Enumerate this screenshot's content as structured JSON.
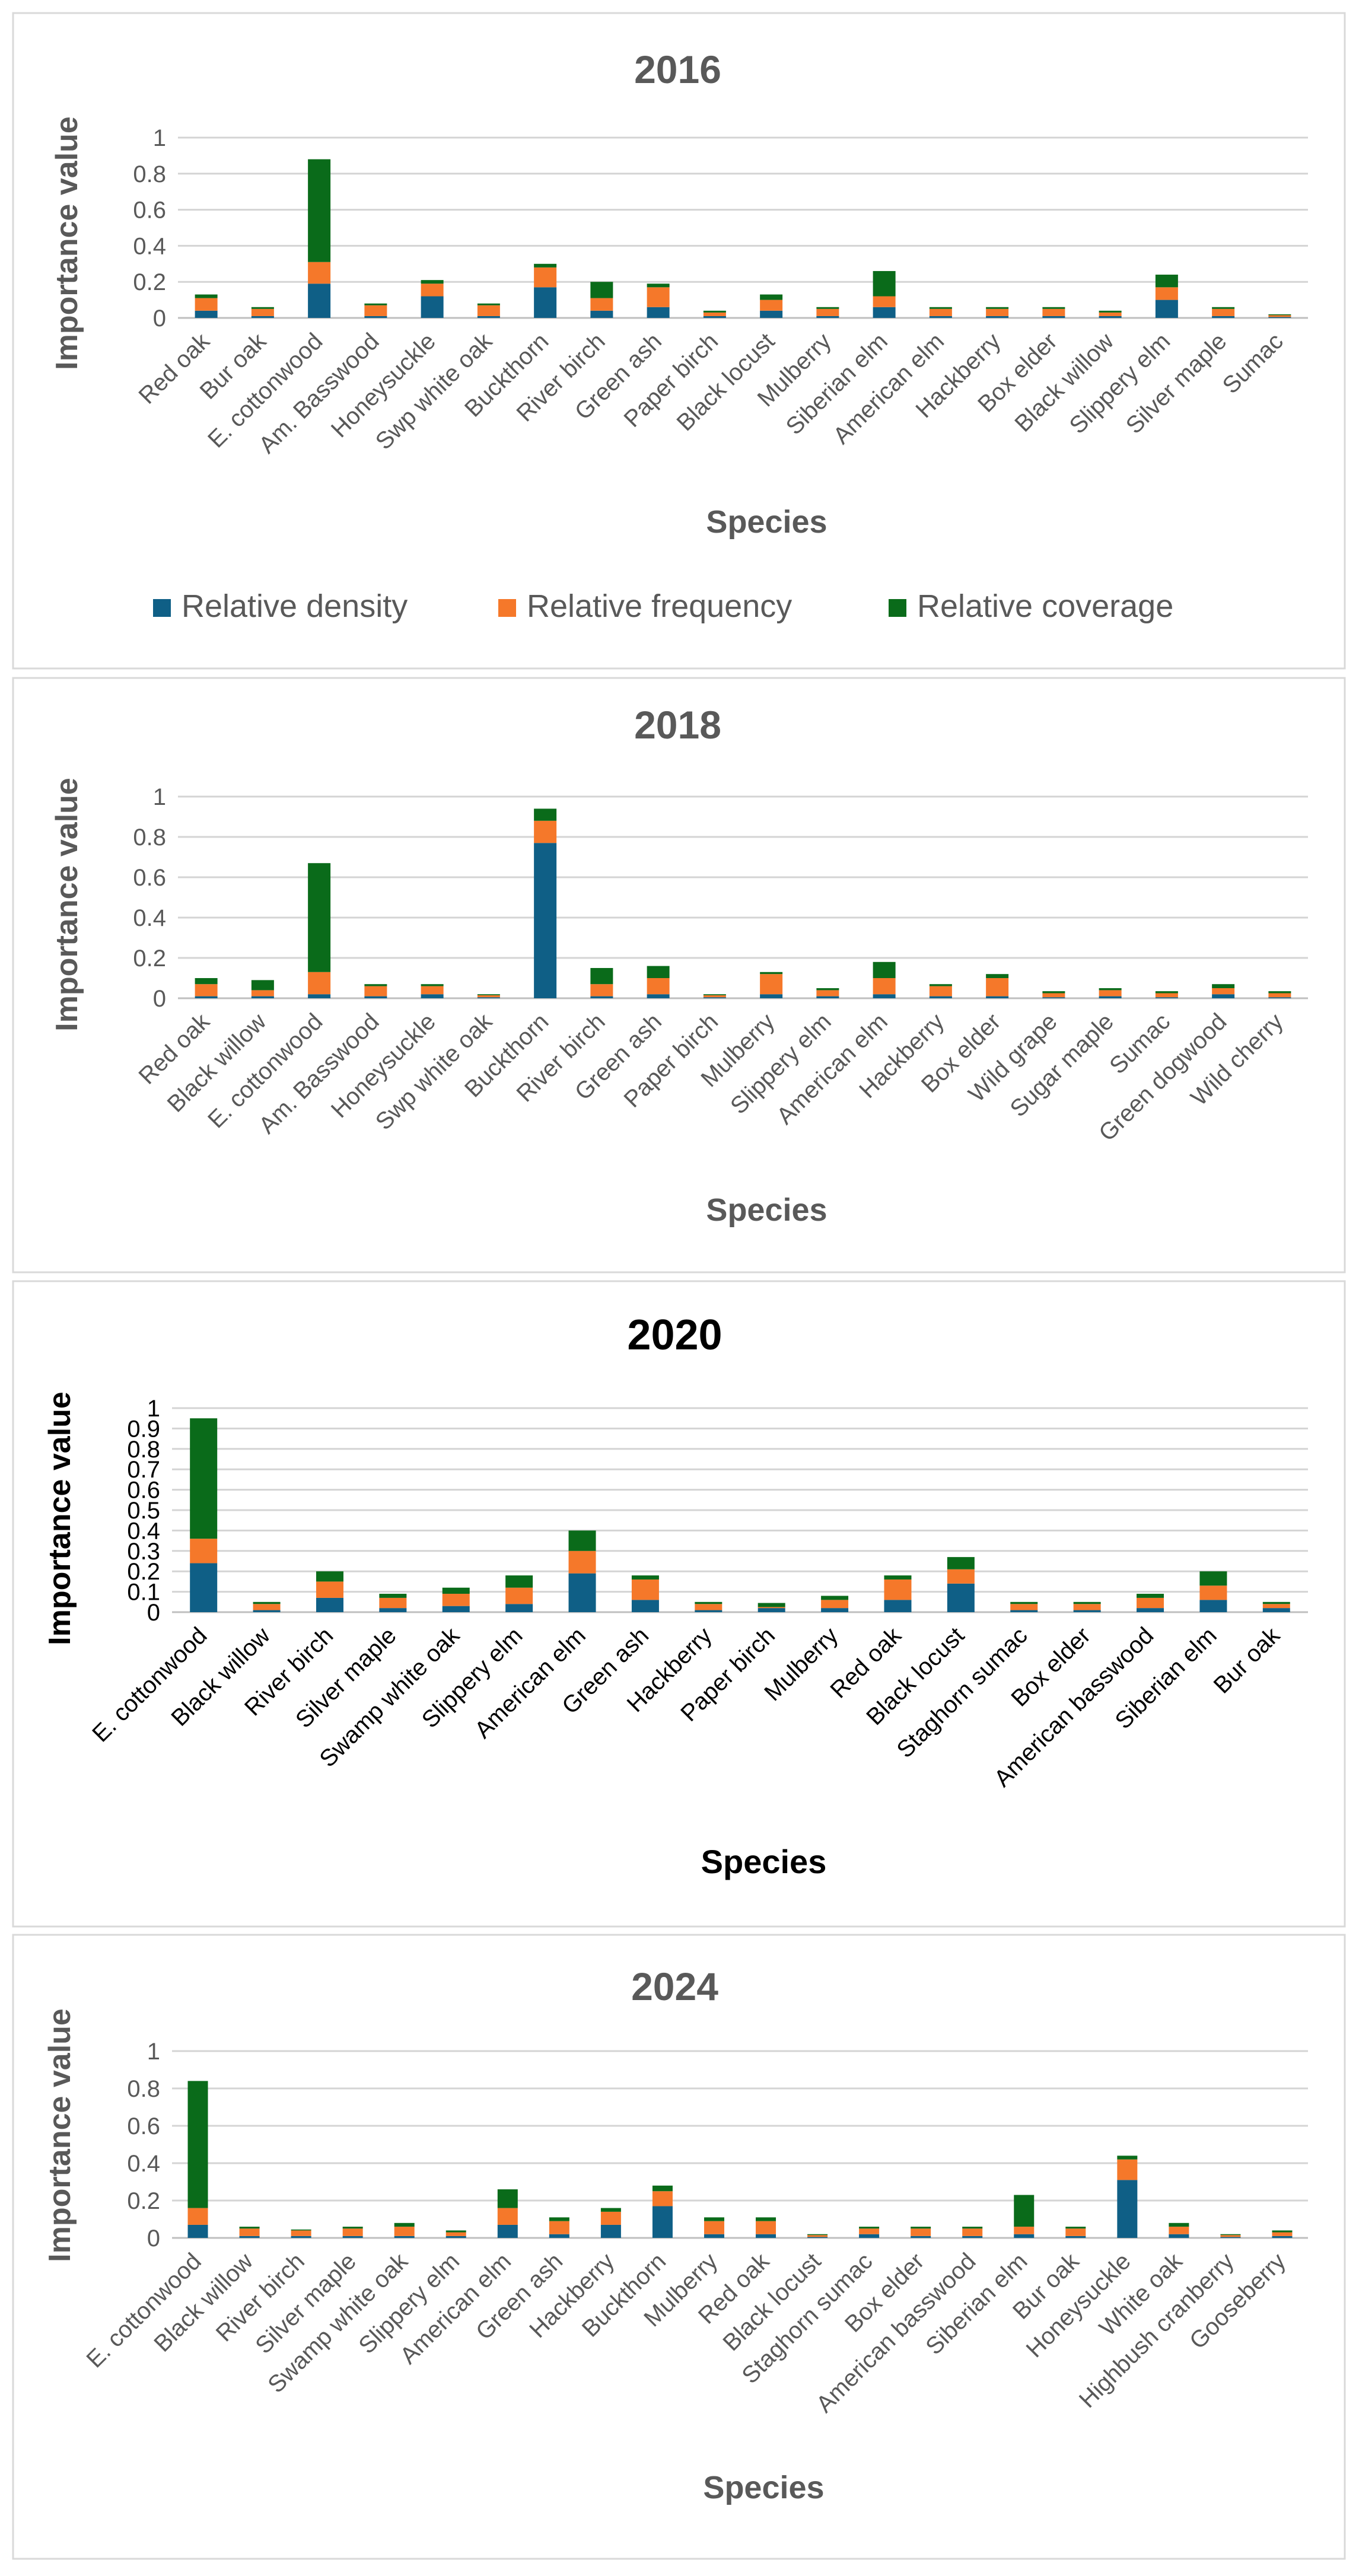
{
  "colors": {
    "density": "#0f5f86",
    "frequency": "#f5782a",
    "coverage": "#0a6b1a",
    "grid": "#d4d4d4",
    "axis_text": "#595959",
    "dark_text": "#000000"
  },
  "legend": {
    "density": "Relative density",
    "frequency": "Relative frequency",
    "coverage": "Relative coverage"
  },
  "chart_data": [
    {
      "type": "bar",
      "stacked": true,
      "title": "2016",
      "xlabel": "Species",
      "ylabel": "Importance value",
      "ylim": [
        0,
        1
      ],
      "yticks": [
        "0",
        "0.2",
        "0.4",
        "0.6",
        "0.8",
        "1"
      ],
      "grid": true,
      "legend_position": "bottom",
      "categories": [
        "Red oak",
        "Bur oak",
        "E. cottonwood",
        "Am. Basswood",
        "Honeysuckle",
        "Swp white oak",
        "Buckthorn",
        "River birch",
        "Green ash",
        "Paper birch",
        "Black locust",
        "Mulberry",
        "Siberian elm",
        "American elm",
        "Hackberry",
        "Box elder",
        "Black willow",
        "Slippery elm",
        "Silver maple",
        "Sumac"
      ],
      "series": [
        {
          "name": "Relative density",
          "values": [
            0.04,
            0.01,
            0.19,
            0.01,
            0.12,
            0.01,
            0.17,
            0.04,
            0.06,
            0.01,
            0.04,
            0.01,
            0.06,
            0.01,
            0.01,
            0.01,
            0.01,
            0.1,
            0.01,
            0.005
          ]
        },
        {
          "name": "Relative frequency",
          "values": [
            0.07,
            0.04,
            0.12,
            0.06,
            0.07,
            0.06,
            0.11,
            0.07,
            0.11,
            0.02,
            0.06,
            0.04,
            0.06,
            0.04,
            0.04,
            0.04,
            0.02,
            0.07,
            0.04,
            0.01
          ]
        },
        {
          "name": "Relative coverage",
          "values": [
            0.02,
            0.01,
            0.57,
            0.01,
            0.02,
            0.01,
            0.02,
            0.09,
            0.02,
            0.01,
            0.03,
            0.01,
            0.14,
            0.01,
            0.01,
            0.01,
            0.01,
            0.07,
            0.01,
            0.005
          ]
        }
      ]
    },
    {
      "type": "bar",
      "stacked": true,
      "title": "2018",
      "xlabel": "Species",
      "ylabel": "Importance value",
      "ylim": [
        0,
        1
      ],
      "yticks": [
        "0",
        "0.2",
        "0.4",
        "0.6",
        "0.8",
        "1"
      ],
      "grid": true,
      "legend_position": "none",
      "categories": [
        "Red oak",
        "Black willow",
        "E. cottonwood",
        "Am. Basswood",
        "Honeysuckle",
        "Swp white oak",
        "Buckthorn",
        "River birch",
        "Green ash",
        "Paper birch",
        "Mulberry",
        "Slippery elm",
        "American elm",
        "Hackberry",
        "Box elder",
        "Wild grape",
        "Sugar maple",
        "Sumac",
        "Green dogwood",
        "Wild cherry"
      ],
      "series": [
        {
          "name": "Relative density",
          "values": [
            0.01,
            0.01,
            0.02,
            0.01,
            0.02,
            0.005,
            0.77,
            0.01,
            0.02,
            0.005,
            0.02,
            0.01,
            0.02,
            0.01,
            0.01,
            0.005,
            0.01,
            0.005,
            0.02,
            0.005
          ]
        },
        {
          "name": "Relative frequency",
          "values": [
            0.06,
            0.03,
            0.11,
            0.05,
            0.04,
            0.01,
            0.11,
            0.06,
            0.08,
            0.01,
            0.1,
            0.03,
            0.08,
            0.05,
            0.09,
            0.02,
            0.03,
            0.02,
            0.03,
            0.02
          ]
        },
        {
          "name": "Relative coverage",
          "values": [
            0.03,
            0.05,
            0.54,
            0.01,
            0.01,
            0.005,
            0.06,
            0.08,
            0.06,
            0.005,
            0.01,
            0.01,
            0.08,
            0.01,
            0.02,
            0.01,
            0.01,
            0.01,
            0.02,
            0.01
          ]
        }
      ]
    },
    {
      "type": "bar",
      "stacked": true,
      "title": "2020",
      "xlabel": "Species",
      "ylabel": "Importance value",
      "ylim": [
        0,
        1
      ],
      "yticks": [
        "0",
        "0.1",
        "0.2",
        "0.3",
        "0.4",
        "0.5",
        "0.6",
        "0.7",
        "0.8",
        "0.9",
        "1"
      ],
      "grid": true,
      "legend_position": "none",
      "categories": [
        "E. cottonwood",
        "Black willow",
        "River birch",
        "Silver maple",
        "Swamp white oak",
        "Slippery elm",
        "American elm",
        "Green ash",
        "Hackberry",
        "Paper birch",
        "Mulberry",
        "Red oak",
        "Black locust",
        "Staghorn sumac",
        "Box elder",
        "American basswood",
        "Siberian elm",
        "Bur oak"
      ],
      "series": [
        {
          "name": "Relative density",
          "values": [
            0.24,
            0.01,
            0.07,
            0.02,
            0.03,
            0.04,
            0.19,
            0.06,
            0.01,
            0.02,
            0.02,
            0.06,
            0.14,
            0.01,
            0.01,
            0.02,
            0.06,
            0.02
          ]
        },
        {
          "name": "Relative frequency",
          "values": [
            0.12,
            0.03,
            0.08,
            0.05,
            0.06,
            0.08,
            0.11,
            0.1,
            0.03,
            0.005,
            0.04,
            0.1,
            0.07,
            0.03,
            0.03,
            0.05,
            0.07,
            0.02
          ]
        },
        {
          "name": "Relative coverage",
          "values": [
            0.59,
            0.01,
            0.05,
            0.02,
            0.03,
            0.06,
            0.1,
            0.02,
            0.01,
            0.02,
            0.02,
            0.02,
            0.06,
            0.01,
            0.01,
            0.02,
            0.07,
            0.01
          ]
        }
      ]
    },
    {
      "type": "bar",
      "stacked": true,
      "title": "2024",
      "xlabel": "Species",
      "ylabel": "Importance value",
      "ylim": [
        0,
        1
      ],
      "yticks": [
        "0",
        "0.2",
        "0.4",
        "0.6",
        "0.8",
        "1"
      ],
      "grid": true,
      "legend_position": "none",
      "categories": [
        "E. cottonwood",
        "Black willow",
        "River birch",
        "Silver maple",
        "Swamp white oak",
        "Slippery elm",
        "American elm",
        "Green ash",
        "Hackberry",
        "Buckthorn",
        "Mulberry",
        "Red oak",
        "Black locust",
        "Staghorn sumac",
        "Box elder",
        "American basswood",
        "Siberian elm",
        "Bur oak",
        "Honeysuckle",
        "White oak",
        "Highbush cranberry",
        "Gooseberry"
      ],
      "series": [
        {
          "name": "Relative density",
          "values": [
            0.07,
            0.01,
            0.01,
            0.01,
            0.01,
            0.01,
            0.07,
            0.02,
            0.07,
            0.17,
            0.02,
            0.02,
            0.005,
            0.02,
            0.01,
            0.01,
            0.02,
            0.01,
            0.31,
            0.02,
            0.005,
            0.01
          ]
        },
        {
          "name": "Relative frequency",
          "values": [
            0.09,
            0.04,
            0.03,
            0.04,
            0.05,
            0.02,
            0.09,
            0.07,
            0.07,
            0.08,
            0.07,
            0.07,
            0.01,
            0.03,
            0.04,
            0.04,
            0.04,
            0.04,
            0.11,
            0.04,
            0.01,
            0.02
          ]
        },
        {
          "name": "Relative coverage",
          "values": [
            0.68,
            0.01,
            0.005,
            0.01,
            0.02,
            0.01,
            0.1,
            0.02,
            0.02,
            0.03,
            0.02,
            0.02,
            0.005,
            0.01,
            0.01,
            0.01,
            0.17,
            0.01,
            0.02,
            0.02,
            0.005,
            0.01
          ]
        }
      ]
    }
  ]
}
